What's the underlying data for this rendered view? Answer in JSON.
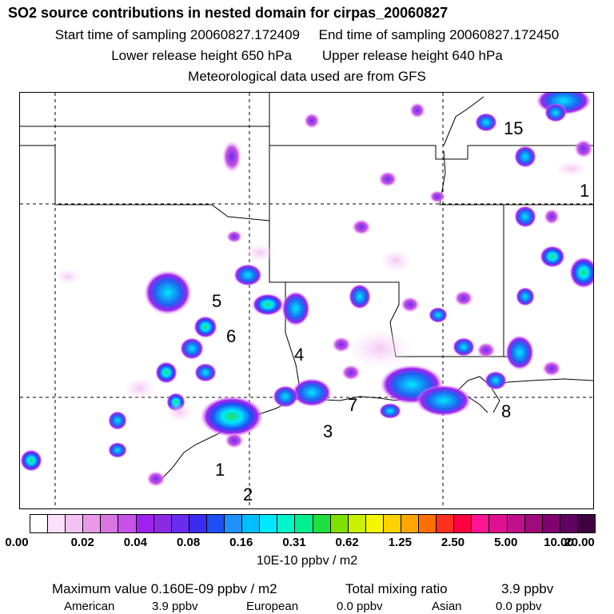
{
  "header": {
    "title": "SO2 source contributions in nested domain for cirpas_20060827",
    "start_time": "Start time of sampling 20060827.172409",
    "end_time": "End time of sampling 20060827.172450",
    "lower_release": "Lower release height  650 hPa",
    "upper_release": "Upper release height  640 hPa",
    "met_data": "Meteorological data used are from GFS"
  },
  "map_labels": [
    "15",
    "1",
    "5",
    "6",
    "4",
    "7",
    "3",
    "8",
    "1",
    "2"
  ],
  "colorbar": {
    "colors": [
      "#ffffff",
      "#fbe0fb",
      "#f2c2f2",
      "#e89ae8",
      "#d776e0",
      "#c852e6",
      "#a020f0",
      "#8a2be2",
      "#6a2cf0",
      "#3b2cf2",
      "#1e4ef5",
      "#2090ff",
      "#00c0ff",
      "#00e8ff",
      "#00f5c8",
      "#00f090",
      "#20e040",
      "#80e000",
      "#c8f000",
      "#f5f500",
      "#ffd000",
      "#ffa500",
      "#ff7000",
      "#ff3020",
      "#ff0040",
      "#ff1493",
      "#e01090",
      "#c0108a",
      "#a00a7a",
      "#800070",
      "#600060",
      "#400040"
    ],
    "ticks": [
      "0.00",
      "0.02",
      "0.04",
      "0.08",
      "0.16",
      "0.31",
      "0.62",
      "1.25",
      "2.50",
      "5.00",
      "10.00",
      "20.00"
    ],
    "units": "10E-10 ppbv / m2"
  },
  "summary": {
    "max_label": "Maximum value  0.160E-09 ppbv / m2",
    "total_label": "Total mixing ratio",
    "total_value": "3.9 ppbv",
    "american_label": "American",
    "american_value": "3.9 ppbv",
    "european_label": "European",
    "european_value": "0.0 ppbv",
    "asian_label": "Asian",
    "asian_value": "0.0 ppbv"
  }
}
